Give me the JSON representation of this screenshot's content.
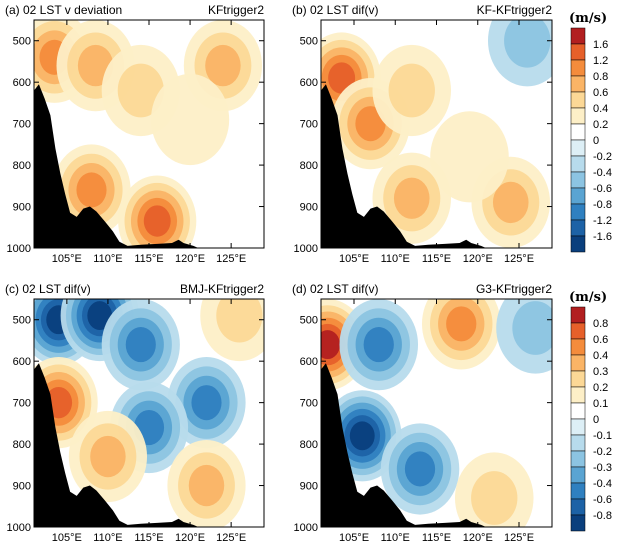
{
  "colors": {
    "scale_top": [
      "#0a3f7d",
      "#1d62a6",
      "#2f80c0",
      "#5aa4d2",
      "#8cc4e2",
      "#b7dbec",
      "#ddeff6",
      "#ffffff",
      "#ffffff",
      "#fdefc7",
      "#fcd896",
      "#fab466",
      "#f48c3c",
      "#e6602a",
      "#cf3a22",
      "#b21f20"
    ],
    "scale_bottom": [
      "#0a3f7d",
      "#1d62a6",
      "#2f80c0",
      "#5aa4d2",
      "#8cc4e2",
      "#b7dbec",
      "#ddeff6",
      "#ffffff",
      "#ffffff",
      "#fdefc7",
      "#fcd896",
      "#fab466",
      "#f48c3c",
      "#e6602a",
      "#cf3a22",
      "#b21f20"
    ],
    "terrain": "#000000"
  },
  "colorbar_top": {
    "unit": "(m/s)",
    "labels": [
      "1.6",
      "1.2",
      "0.8",
      "0.6",
      "0.4",
      "0.2",
      "0",
      "-0.2",
      "-0.4",
      "-0.6",
      "-0.8",
      "-1.2",
      "-1.6"
    ]
  },
  "colorbar_bottom": {
    "unit": "(m/s)",
    "labels": [
      "0.8",
      "0.6",
      "0.4",
      "0.3",
      "0.2",
      "0.1",
      "0",
      "-0.1",
      "-0.2",
      "-0.3",
      "-0.4",
      "-0.6",
      "-0.8"
    ]
  },
  "chart_data": [
    {
      "type": "heatmap",
      "panel": "(a)",
      "title_left": "(a)  02 LST   v deviation",
      "title_right": "KFtrigger2",
      "y_ticks": [
        "500",
        "600",
        "700",
        "800",
        "900",
        "1000"
      ],
      "x_ticks": [
        "105°E",
        "110°E",
        "115°E",
        "120°E",
        "125°E"
      ],
      "ylim": [
        1000,
        450
      ],
      "xlim": [
        101,
        129
      ],
      "scale": "top",
      "features": [
        {
          "kind": "blob",
          "lon": 103.5,
          "p": 540,
          "value": 0.9
        },
        {
          "kind": "blob",
          "lon": 108.5,
          "p": 560,
          "value": 0.7
        },
        {
          "kind": "blob",
          "lon": 114,
          "p": 620,
          "value": 0.5
        },
        {
          "kind": "blob",
          "lon": 124,
          "p": 560,
          "value": 0.6
        },
        {
          "kind": "blob",
          "lon": 108,
          "p": 860,
          "value": 1.1
        },
        {
          "kind": "blob",
          "lon": 116,
          "p": 935,
          "value": 1.5
        },
        {
          "kind": "blob",
          "lon": 120,
          "p": 690,
          "value": 0.3
        },
        {
          "kind": "blob",
          "lon": 104,
          "p": 760,
          "value": -0.1
        }
      ]
    },
    {
      "type": "heatmap",
      "panel": "(b)",
      "title_left": "(b)  02 LST   dif(v)",
      "title_right": "KF-KFtrigger2",
      "y_ticks": [
        "500",
        "600",
        "700",
        "800",
        "900",
        "1000"
      ],
      "x_ticks": [
        "105°E",
        "110°E",
        "115°E",
        "120°E",
        "125°E"
      ],
      "ylim": [
        1000,
        450
      ],
      "xlim": [
        101,
        129
      ],
      "scale": "top",
      "features": [
        {
          "kind": "blob",
          "lon": 103.5,
          "p": 590,
          "value": 1.5
        },
        {
          "kind": "blob",
          "lon": 107,
          "p": 700,
          "value": 0.9
        },
        {
          "kind": "blob",
          "lon": 112,
          "p": 620,
          "value": 0.4
        },
        {
          "kind": "blob",
          "lon": 112,
          "p": 880,
          "value": 0.6
        },
        {
          "kind": "blob",
          "lon": 124,
          "p": 890,
          "value": 0.6
        },
        {
          "kind": "blob",
          "lon": 126,
          "p": 500,
          "value": -0.4
        },
        {
          "kind": "blob",
          "lon": 119,
          "p": 780,
          "value": 0.2
        }
      ]
    },
    {
      "type": "heatmap",
      "panel": "(c)",
      "title_left": "(c)  02 LST   dif(v)",
      "title_right": "BMJ-KFtrigger2",
      "y_ticks": [
        "500",
        "600",
        "700",
        "800",
        "900",
        "1000"
      ],
      "x_ticks": [
        "105°E",
        "110°E",
        "115°E",
        "120°E",
        "125°E"
      ],
      "ylim": [
        1000,
        450
      ],
      "xlim": [
        101,
        129
      ],
      "scale": "bottom",
      "features": [
        {
          "kind": "blob",
          "lon": 104,
          "p": 500,
          "value": -0.8
        },
        {
          "kind": "blob",
          "lon": 109,
          "p": 490,
          "value": -0.9
        },
        {
          "kind": "blob",
          "lon": 114,
          "p": 560,
          "value": -0.5
        },
        {
          "kind": "blob",
          "lon": 122,
          "p": 700,
          "value": -0.5
        },
        {
          "kind": "blob",
          "lon": 115,
          "p": 760,
          "value": -0.4
        },
        {
          "kind": "blob",
          "lon": 104,
          "p": 700,
          "value": 0.7
        },
        {
          "kind": "blob",
          "lon": 110,
          "p": 830,
          "value": 0.3
        },
        {
          "kind": "blob",
          "lon": 122,
          "p": 900,
          "value": 0.3
        },
        {
          "kind": "blob",
          "lon": 126,
          "p": 490,
          "value": 0.2
        }
      ]
    },
    {
      "type": "heatmap",
      "panel": "(d)",
      "title_left": "(d)  02 LST   dif(v)",
      "title_right": "G3-KFtrigger2",
      "y_ticks": [
        "500",
        "600",
        "700",
        "800",
        "900",
        "1000"
      ],
      "x_ticks": [
        "105°E",
        "110°E",
        "115°E",
        "120°E",
        "125°E"
      ],
      "ylim": [
        1000,
        450
      ],
      "xlim": [
        101,
        129
      ],
      "scale": "bottom",
      "features": [
        {
          "kind": "blob",
          "lon": 101.8,
          "p": 560,
          "value": 0.8
        },
        {
          "kind": "blob",
          "lon": 106,
          "p": 780,
          "value": -0.8
        },
        {
          "kind": "blob",
          "lon": 108,
          "p": 560,
          "value": -0.5
        },
        {
          "kind": "blob",
          "lon": 113,
          "p": 860,
          "value": -0.4
        },
        {
          "kind": "blob",
          "lon": 118,
          "p": 510,
          "value": 0.5
        },
        {
          "kind": "blob",
          "lon": 127,
          "p": 520,
          "value": -0.2
        },
        {
          "kind": "blob",
          "lon": 122,
          "p": 930,
          "value": 0.2
        }
      ]
    }
  ]
}
